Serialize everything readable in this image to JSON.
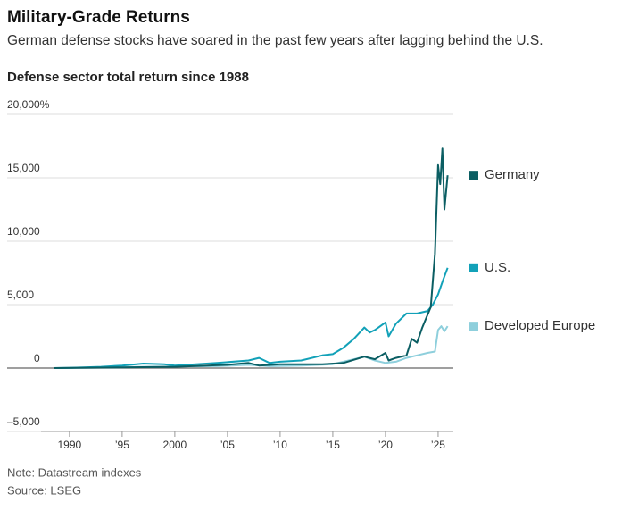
{
  "chart_data": {
    "type": "line",
    "title": "Military-Grade Returns",
    "subtitle": "German defense stocks have soared in the past few years after lagging behind the U.S.",
    "chart_title": "Defense sector total return since 1988",
    "note": "Note: Datastream indexes",
    "source": "Source: LSEG",
    "xlim": [
      1987.3,
      2026.7
    ],
    "ylim": [
      -5000,
      20000
    ],
    "xticks": [
      1990,
      {
        "value": 1995,
        "label": "’95"
      },
      2000,
      {
        "value": 2005,
        "label": "’05"
      },
      {
        "value": 2010,
        "label": "’10"
      },
      {
        "value": 2015,
        "label": "’15"
      },
      {
        "value": 2020,
        "label": "’20"
      },
      {
        "value": 2025,
        "label": "’25"
      }
    ],
    "yticks": [
      {
        "value": -5000,
        "label": "–5,000"
      },
      0,
      {
        "value": 5000,
        "label": "5,000"
      },
      {
        "value": 10000,
        "label": "10,000"
      },
      {
        "value": 15000,
        "label": "15,000"
      },
      {
        "value": 20000,
        "label": "20,000%"
      }
    ],
    "grid": true,
    "legend": "right",
    "series": [
      {
        "name": "Developed Europe",
        "color": "#8ecfdc",
        "x": [
          1988.5,
          1992,
          1996,
          2000,
          2004,
          2007,
          2009,
          2012,
          2015,
          2017,
          2018,
          2019,
          2020,
          2021,
          2022,
          2023,
          2024,
          2024.7,
          2025,
          2025.3,
          2025.6,
          2025.9
        ],
        "values": [
          0,
          30,
          80,
          120,
          150,
          250,
          150,
          200,
          300,
          700,
          900,
          600,
          400,
          500,
          800,
          1000,
          1200,
          1300,
          3000,
          3300,
          2900,
          3300
        ]
      },
      {
        "name": "U.S.",
        "color": "#12a1b8",
        "x": [
          1988.5,
          1990,
          1993,
          1995,
          1997,
          1999,
          2000,
          2002,
          2004,
          2007,
          2008,
          2009,
          2010,
          2012,
          2014,
          2015,
          2016,
          2017,
          2018,
          2018.5,
          2019,
          2020,
          2020.3,
          2021,
          2022,
          2023,
          2024,
          2024.5,
          2025,
          2025.5,
          2025.9
        ],
        "values": [
          0,
          20,
          100,
          200,
          350,
          300,
          200,
          300,
          400,
          600,
          800,
          400,
          500,
          600,
          1000,
          1100,
          1600,
          2300,
          3200,
          2800,
          3000,
          3600,
          2500,
          3500,
          4300,
          4300,
          4500,
          5000,
          5800,
          7000,
          7900
        ]
      },
      {
        "name": "Germany",
        "color": "#0b5e63",
        "x": [
          1988.5,
          1995,
          2000,
          2005,
          2007,
          2008,
          2010,
          2014,
          2016,
          2018,
          2019,
          2020,
          2020.3,
          2021,
          2022,
          2022.5,
          2023,
          2023.5,
          2024,
          2024.3,
          2024.7,
          2025,
          2025.2,
          2025.4,
          2025.6,
          2025.9
        ],
        "values": [
          0,
          50,
          100,
          250,
          400,
          200,
          300,
          300,
          400,
          900,
          700,
          1200,
          600,
          800,
          1000,
          2300,
          2000,
          3200,
          4200,
          4800,
          9000,
          16000,
          14500,
          17300,
          12500,
          15200
        ]
      }
    ]
  }
}
